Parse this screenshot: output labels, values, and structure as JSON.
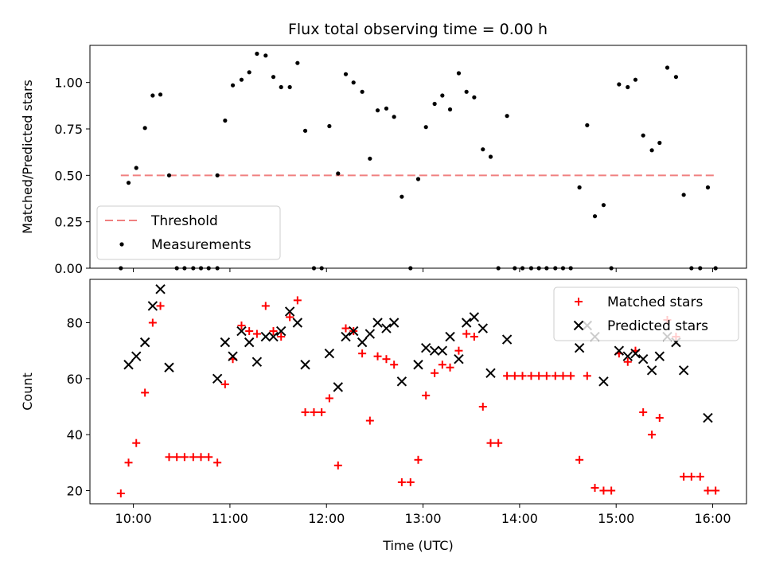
{
  "figure": {
    "title": "Flux total observing time = 0.00 h"
  },
  "chart_data": [
    {
      "type": "scatter",
      "ylabel": "Matched/Predicted stars",
      "xlim": [
        9.55,
        16.35
      ],
      "ylim": [
        0,
        1.2
      ],
      "y_ticks": [
        0,
        0.25,
        0.5,
        0.75,
        1.0
      ],
      "y_tick_labels": [
        "0.00",
        "0.25",
        "0.50",
        "0.75",
        "1.00"
      ],
      "x_ticks": [
        10,
        11,
        12,
        13,
        14,
        15,
        16
      ],
      "legend": {
        "placement": "lower-left",
        "entries": [
          "Threshold",
          "Measurements"
        ]
      },
      "threshold": {
        "name": "Threshold",
        "value": 0.5,
        "x_range": [
          9.87,
          16.05
        ],
        "color": "#f08080"
      },
      "series": [
        {
          "name": "Measurements",
          "color": "#000000",
          "points": [
            [
              9.87,
              0.0
            ],
            [
              9.95,
              0.46
            ],
            [
              10.03,
              0.54
            ],
            [
              10.12,
              0.755
            ],
            [
              10.2,
              0.93
            ],
            [
              10.28,
              0.935
            ],
            [
              10.37,
              0.5
            ],
            [
              10.45,
              0.0
            ],
            [
              10.53,
              0.0
            ],
            [
              10.62,
              0.0
            ],
            [
              10.7,
              0.0
            ],
            [
              10.78,
              0.0
            ],
            [
              10.87,
              0.0
            ],
            [
              10.87,
              0.5
            ],
            [
              10.95,
              0.795
            ],
            [
              11.03,
              0.985
            ],
            [
              11.12,
              1.015
            ],
            [
              11.2,
              1.055
            ],
            [
              11.28,
              1.155
            ],
            [
              11.37,
              1.145
            ],
            [
              11.45,
              1.03
            ],
            [
              11.53,
              0.975
            ],
            [
              11.62,
              0.975
            ],
            [
              11.7,
              1.105
            ],
            [
              11.78,
              0.74
            ],
            [
              11.87,
              0.0
            ],
            [
              11.95,
              0.0
            ],
            [
              12.03,
              0.765
            ],
            [
              12.12,
              0.51
            ],
            [
              12.2,
              1.045
            ],
            [
              12.28,
              1.0
            ],
            [
              12.37,
              0.95
            ],
            [
              12.45,
              0.59
            ],
            [
              12.53,
              0.85
            ],
            [
              12.62,
              0.86
            ],
            [
              12.7,
              0.815
            ],
            [
              12.78,
              0.385
            ],
            [
              12.87,
              0.0
            ],
            [
              12.95,
              0.48
            ],
            [
              13.03,
              0.76
            ],
            [
              13.12,
              0.885
            ],
            [
              13.2,
              0.93
            ],
            [
              13.28,
              0.855
            ],
            [
              13.37,
              1.05
            ],
            [
              13.45,
              0.95
            ],
            [
              13.53,
              0.92
            ],
            [
              13.62,
              0.64
            ],
            [
              13.7,
              0.6
            ],
            [
              13.78,
              0.0
            ],
            [
              13.87,
              0.82
            ],
            [
              13.95,
              0.0
            ],
            [
              14.03,
              0.0
            ],
            [
              14.12,
              0.0
            ],
            [
              14.2,
              0.0
            ],
            [
              14.28,
              0.0
            ],
            [
              14.37,
              0.0
            ],
            [
              14.45,
              0.0
            ],
            [
              14.53,
              0.0
            ],
            [
              14.62,
              0.435
            ],
            [
              14.7,
              0.77
            ],
            [
              14.78,
              0.28
            ],
            [
              14.87,
              0.34
            ],
            [
              14.95,
              0.0
            ],
            [
              15.03,
              0.99
            ],
            [
              15.12,
              0.975
            ],
            [
              15.2,
              1.015
            ],
            [
              15.28,
              0.715
            ],
            [
              15.37,
              0.635
            ],
            [
              15.45,
              0.675
            ],
            [
              15.53,
              1.08
            ],
            [
              15.62,
              1.03
            ],
            [
              15.7,
              0.395
            ],
            [
              15.78,
              0.0
            ],
            [
              15.87,
              0.0
            ],
            [
              15.95,
              0.435
            ],
            [
              16.03,
              0.0
            ]
          ]
        }
      ]
    },
    {
      "type": "scatter",
      "xlabel": "Time (UTC)",
      "ylabel": "Count",
      "xlim": [
        9.55,
        16.35
      ],
      "ylim": [
        15.3,
        95.5
      ],
      "y_ticks": [
        20,
        40,
        60,
        80
      ],
      "x_ticks": [
        10,
        11,
        12,
        13,
        14,
        15,
        16
      ],
      "x_tick_labels": [
        "10:00",
        "11:00",
        "12:00",
        "13:00",
        "14:00",
        "15:00",
        "16:00"
      ],
      "legend": {
        "placement": "upper-right",
        "entries": [
          "Matched stars",
          "Predicted stars"
        ]
      },
      "series": [
        {
          "name": "Matched stars",
          "marker": "plus",
          "color": "#ff0000",
          "points": [
            [
              9.87,
              19
            ],
            [
              9.95,
              30
            ],
            [
              10.03,
              37
            ],
            [
              10.12,
              55
            ],
            [
              10.2,
              80
            ],
            [
              10.28,
              86
            ],
            [
              10.37,
              32
            ],
            [
              10.45,
              32
            ],
            [
              10.53,
              32
            ],
            [
              10.62,
              32
            ],
            [
              10.7,
              32
            ],
            [
              10.78,
              32
            ],
            [
              10.87,
              30
            ],
            [
              10.95,
              58
            ],
            [
              11.03,
              67
            ],
            [
              11.12,
              79
            ],
            [
              11.2,
              77
            ],
            [
              11.28,
              76
            ],
            [
              11.37,
              86
            ],
            [
              11.45,
              77
            ],
            [
              11.53,
              75
            ],
            [
              11.62,
              82
            ],
            [
              11.7,
              88
            ],
            [
              11.78,
              48
            ],
            [
              11.87,
              48
            ],
            [
              11.95,
              48
            ],
            [
              12.03,
              53
            ],
            [
              12.12,
              29
            ],
            [
              12.2,
              78
            ],
            [
              12.28,
              77
            ],
            [
              12.37,
              69
            ],
            [
              12.45,
              45
            ],
            [
              12.53,
              68
            ],
            [
              12.62,
              67
            ],
            [
              12.7,
              65
            ],
            [
              12.78,
              23
            ],
            [
              12.87,
              23
            ],
            [
              12.95,
              31
            ],
            [
              13.03,
              54
            ],
            [
              13.12,
              62
            ],
            [
              13.2,
              65
            ],
            [
              13.28,
              64
            ],
            [
              13.37,
              70
            ],
            [
              13.45,
              76
            ],
            [
              13.53,
              75
            ],
            [
              13.62,
              50
            ],
            [
              13.7,
              37
            ],
            [
              13.78,
              37
            ],
            [
              13.87,
              61
            ],
            [
              13.95,
              61
            ],
            [
              14.03,
              61
            ],
            [
              14.12,
              61
            ],
            [
              14.2,
              61
            ],
            [
              14.28,
              61
            ],
            [
              14.37,
              61
            ],
            [
              14.45,
              61
            ],
            [
              14.53,
              61
            ],
            [
              14.62,
              31
            ],
            [
              14.7,
              61
            ],
            [
              14.78,
              21
            ],
            [
              14.87,
              20
            ],
            [
              14.95,
              20
            ],
            [
              15.03,
              69
            ],
            [
              15.12,
              66
            ],
            [
              15.2,
              70
            ],
            [
              15.28,
              48
            ],
            [
              15.37,
              40
            ],
            [
              15.45,
              46
            ],
            [
              15.53,
              81
            ],
            [
              15.62,
              75
            ],
            [
              15.7,
              25
            ],
            [
              15.78,
              25
            ],
            [
              15.87,
              25
            ],
            [
              15.95,
              20
            ],
            [
              16.03,
              20
            ]
          ]
        },
        {
          "name": "Predicted stars",
          "marker": "x",
          "color": "#000000",
          "points": [
            [
              9.95,
              65
            ],
            [
              10.03,
              68
            ],
            [
              10.12,
              73
            ],
            [
              10.2,
              86
            ],
            [
              10.28,
              92
            ],
            [
              10.37,
              64
            ],
            [
              10.87,
              60
            ],
            [
              10.95,
              73
            ],
            [
              11.03,
              68
            ],
            [
              11.12,
              77
            ],
            [
              11.2,
              73
            ],
            [
              11.28,
              66
            ],
            [
              11.37,
              75
            ],
            [
              11.45,
              75
            ],
            [
              11.53,
              77
            ],
            [
              11.62,
              84
            ],
            [
              11.7,
              80
            ],
            [
              11.78,
              65
            ],
            [
              12.03,
              69
            ],
            [
              12.12,
              57
            ],
            [
              12.2,
              75
            ],
            [
              12.28,
              77
            ],
            [
              12.37,
              73
            ],
            [
              12.45,
              76
            ],
            [
              12.53,
              80
            ],
            [
              12.62,
              78
            ],
            [
              12.7,
              80
            ],
            [
              12.78,
              59
            ],
            [
              12.95,
              65
            ],
            [
              13.03,
              71
            ],
            [
              13.12,
              70
            ],
            [
              13.2,
              70
            ],
            [
              13.28,
              75
            ],
            [
              13.37,
              67
            ],
            [
              13.45,
              80
            ],
            [
              13.53,
              82
            ],
            [
              13.62,
              78
            ],
            [
              13.7,
              62
            ],
            [
              13.87,
              74
            ],
            [
              14.62,
              71
            ],
            [
              14.7,
              79
            ],
            [
              14.78,
              75
            ],
            [
              14.87,
              59
            ],
            [
              15.03,
              70
            ],
            [
              15.12,
              68
            ],
            [
              15.2,
              69
            ],
            [
              15.28,
              67
            ],
            [
              15.37,
              63
            ],
            [
              15.45,
              68
            ],
            [
              15.53,
              75
            ],
            [
              15.62,
              73
            ],
            [
              15.7,
              63
            ],
            [
              15.95,
              46
            ]
          ]
        }
      ]
    }
  ]
}
